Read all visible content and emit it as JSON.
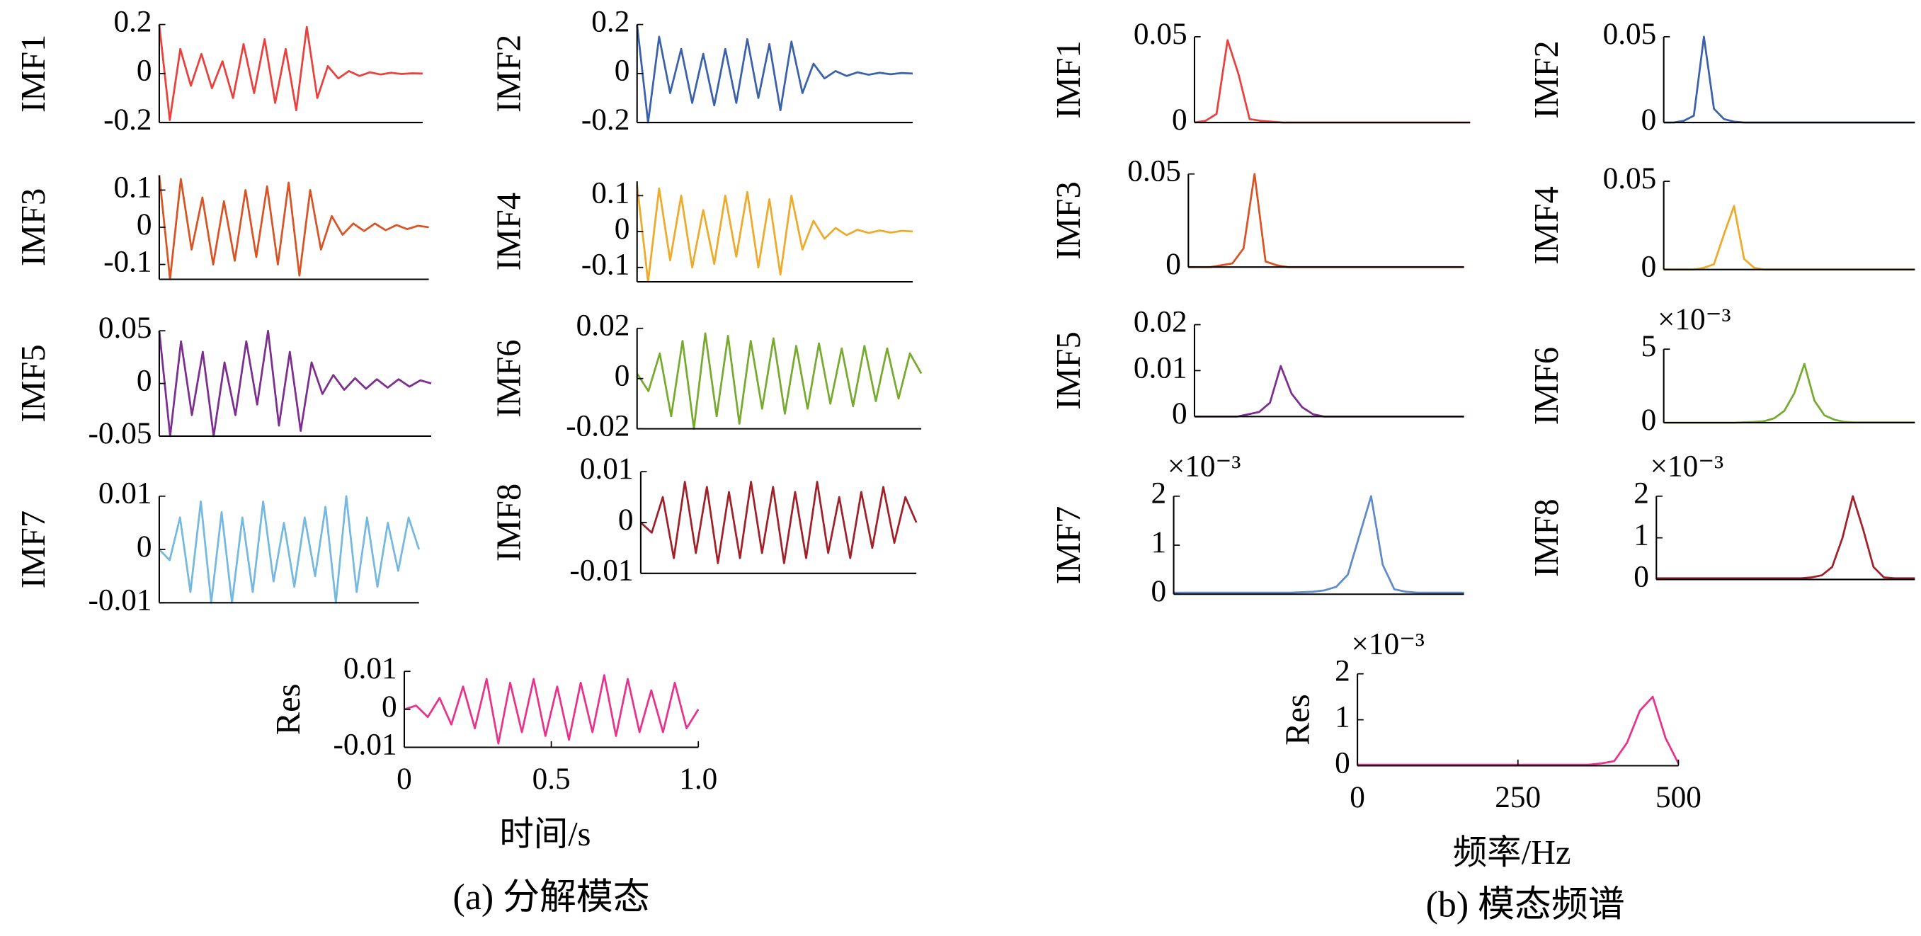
{
  "captions": [
    "(a) 分解模态",
    "(b) 模态频谱"
  ],
  "chart_data": [
    {
      "type": "line",
      "ylabel": "IMF1",
      "color": "#e8413e",
      "xlim": [
        0,
        1
      ],
      "ylim": [
        -0.2,
        0.2
      ],
      "yticks": [
        -0.2,
        0,
        0.2
      ],
      "x": [
        0,
        0.04,
        0.08,
        0.12,
        0.16,
        0.2,
        0.24,
        0.28,
        0.32,
        0.36,
        0.4,
        0.44,
        0.48,
        0.52,
        0.56,
        0.6,
        0.64,
        0.68,
        0.72,
        0.76,
        0.8,
        0.84,
        0.88,
        0.92,
        0.96,
        1
      ],
      "values": [
        0.2,
        -0.19,
        0.1,
        -0.05,
        0.08,
        -0.06,
        0.05,
        -0.1,
        0.12,
        -0.08,
        0.14,
        -0.12,
        0.1,
        -0.15,
        0.19,
        -0.1,
        0.03,
        -0.02,
        0.01,
        -0.01,
        0.005,
        -0.004,
        0.003,
        -0.002,
        0.001,
        0
      ]
    },
    {
      "type": "line",
      "ylabel": "IMF2",
      "color": "#3b62a8",
      "xlim": [
        0,
        1
      ],
      "ylim": [
        -0.2,
        0.2
      ],
      "yticks": [
        -0.2,
        0,
        0.2
      ],
      "x": [
        0,
        0.04,
        0.08,
        0.12,
        0.16,
        0.2,
        0.24,
        0.28,
        0.32,
        0.36,
        0.4,
        0.44,
        0.48,
        0.52,
        0.56,
        0.6,
        0.64,
        0.68,
        0.72,
        0.76,
        0.8,
        0.84,
        0.88,
        0.92,
        0.96,
        1
      ],
      "values": [
        0.2,
        -0.2,
        0.15,
        -0.08,
        0.1,
        -0.12,
        0.08,
        -0.13,
        0.1,
        -0.12,
        0.14,
        -0.1,
        0.12,
        -0.15,
        0.13,
        -0.08,
        0.04,
        -0.02,
        0.01,
        -0.01,
        0.005,
        -0.005,
        0.003,
        -0.003,
        0.002,
        0
      ]
    },
    {
      "type": "line",
      "ylabel": "IMF3",
      "color": "#d95425",
      "xlim": [
        0,
        1
      ],
      "ylim": [
        -0.14,
        0.14
      ],
      "yticks": [
        -0.1,
        0,
        0.1
      ],
      "x": [
        0,
        0.04,
        0.08,
        0.12,
        0.16,
        0.2,
        0.24,
        0.28,
        0.32,
        0.36,
        0.4,
        0.44,
        0.48,
        0.52,
        0.56,
        0.6,
        0.64,
        0.68,
        0.72,
        0.76,
        0.8,
        0.84,
        0.88,
        0.92,
        0.96,
        1
      ],
      "values": [
        0.14,
        -0.14,
        0.13,
        -0.06,
        0.08,
        -0.1,
        0.07,
        -0.09,
        0.1,
        -0.08,
        0.11,
        -0.1,
        0.12,
        -0.13,
        0.1,
        -0.06,
        0.03,
        -0.02,
        0.01,
        -0.01,
        0.01,
        -0.008,
        0.006,
        -0.005,
        0.004,
        0
      ]
    },
    {
      "type": "line",
      "ylabel": "IMF4",
      "color": "#eeaa2a",
      "xlim": [
        0,
        1
      ],
      "ylim": [
        -0.14,
        0.14
      ],
      "yticks": [
        -0.1,
        0,
        0.1
      ],
      "x": [
        0,
        0.04,
        0.08,
        0.12,
        0.16,
        0.2,
        0.24,
        0.28,
        0.32,
        0.36,
        0.4,
        0.44,
        0.48,
        0.52,
        0.56,
        0.6,
        0.64,
        0.68,
        0.72,
        0.76,
        0.8,
        0.84,
        0.88,
        0.92,
        0.96,
        1
      ],
      "values": [
        0.13,
        -0.14,
        0.12,
        -0.08,
        0.1,
        -0.1,
        0.06,
        -0.09,
        0.1,
        -0.07,
        0.11,
        -0.1,
        0.09,
        -0.12,
        0.1,
        -0.05,
        0.03,
        -0.02,
        0.01,
        -0.01,
        0.005,
        -0.004,
        0.003,
        -0.003,
        0.002,
        0
      ]
    },
    {
      "type": "line",
      "ylabel": "IMF5",
      "color": "#7c2f8e",
      "xlim": [
        0,
        1
      ],
      "ylim": [
        -0.05,
        0.05
      ],
      "yticks": [
        -0.05,
        0,
        0.05
      ],
      "x": [
        0,
        0.04,
        0.08,
        0.12,
        0.16,
        0.2,
        0.24,
        0.28,
        0.32,
        0.36,
        0.4,
        0.44,
        0.48,
        0.52,
        0.56,
        0.6,
        0.64,
        0.68,
        0.72,
        0.76,
        0.8,
        0.84,
        0.88,
        0.92,
        0.96,
        1
      ],
      "values": [
        0.05,
        -0.05,
        0.04,
        -0.03,
        0.03,
        -0.05,
        0.02,
        -0.03,
        0.04,
        -0.02,
        0.05,
        -0.04,
        0.03,
        -0.045,
        0.02,
        -0.01,
        0.008,
        -0.006,
        0.005,
        -0.005,
        0.004,
        -0.004,
        0.004,
        -0.003,
        0.003,
        0
      ]
    },
    {
      "type": "line",
      "ylabel": "IMF6",
      "color": "#77ab30",
      "xlim": [
        0,
        1
      ],
      "ylim": [
        -0.02,
        0.02
      ],
      "yticks": [
        -0.02,
        0,
        0.02
      ],
      "x": [
        0,
        0.04,
        0.08,
        0.12,
        0.16,
        0.2,
        0.24,
        0.28,
        0.32,
        0.36,
        0.4,
        0.44,
        0.48,
        0.52,
        0.56,
        0.6,
        0.64,
        0.68,
        0.72,
        0.76,
        0.8,
        0.84,
        0.88,
        0.92,
        0.96,
        1
      ],
      "values": [
        0.002,
        -0.005,
        0.01,
        -0.015,
        0.015,
        -0.02,
        0.018,
        -0.015,
        0.017,
        -0.018,
        0.015,
        -0.012,
        0.016,
        -0.014,
        0.013,
        -0.012,
        0.014,
        -0.01,
        0.012,
        -0.011,
        0.013,
        -0.009,
        0.012,
        -0.008,
        0.01,
        0.002
      ]
    },
    {
      "type": "line",
      "ylabel": "IMF7",
      "color": "#75b9e0",
      "xlim": [
        0,
        1
      ],
      "ylim": [
        -0.01,
        0.01
      ],
      "yticks": [
        -0.01,
        0,
        0.01
      ],
      "x": [
        0,
        0.04,
        0.08,
        0.12,
        0.16,
        0.2,
        0.24,
        0.28,
        0.32,
        0.36,
        0.4,
        0.44,
        0.48,
        0.52,
        0.56,
        0.6,
        0.64,
        0.68,
        0.72,
        0.76,
        0.8,
        0.84,
        0.88,
        0.92,
        0.96,
        1
      ],
      "values": [
        0,
        -0.002,
        0.006,
        -0.008,
        0.009,
        -0.01,
        0.007,
        -0.01,
        0.006,
        -0.008,
        0.009,
        -0.006,
        0.005,
        -0.007,
        0.006,
        -0.005,
        0.008,
        -0.01,
        0.01,
        -0.008,
        0.006,
        -0.007,
        0.005,
        -0.004,
        0.006,
        0
      ]
    },
    {
      "type": "line",
      "ylabel": "IMF8",
      "color": "#a0212a",
      "xlim": [
        0,
        1
      ],
      "ylim": [
        -0.01,
        0.01
      ],
      "yticks": [
        -0.01,
        0,
        0.01
      ],
      "x": [
        0,
        0.04,
        0.08,
        0.12,
        0.16,
        0.2,
        0.24,
        0.28,
        0.32,
        0.36,
        0.4,
        0.44,
        0.48,
        0.52,
        0.56,
        0.6,
        0.64,
        0.68,
        0.72,
        0.76,
        0.8,
        0.84,
        0.88,
        0.92,
        0.96,
        1
      ],
      "values": [
        0,
        -0.002,
        0.005,
        -0.007,
        0.008,
        -0.006,
        0.007,
        -0.008,
        0.006,
        -0.007,
        0.008,
        -0.006,
        0.007,
        -0.008,
        0.006,
        -0.007,
        0.008,
        -0.006,
        0.005,
        -0.007,
        0.006,
        -0.005,
        0.007,
        -0.004,
        0.005,
        0
      ]
    },
    {
      "type": "line",
      "ylabel": "Res",
      "xlabel": "时间/s",
      "color": "#e8338c",
      "xlim": [
        0,
        1
      ],
      "ylim": [
        -0.01,
        0.01
      ],
      "yticks": [
        -0.01,
        0,
        0.01
      ],
      "xticks": [
        0,
        0.5,
        {
          "value": 1,
          "label": "1.0"
        }
      ],
      "x": [
        0,
        0.04,
        0.08,
        0.12,
        0.16,
        0.2,
        0.24,
        0.28,
        0.32,
        0.36,
        0.4,
        0.44,
        0.48,
        0.52,
        0.56,
        0.6,
        0.64,
        0.68,
        0.72,
        0.76,
        0.8,
        0.84,
        0.88,
        0.92,
        0.96,
        1
      ],
      "values": [
        0,
        0.001,
        -0.002,
        0.003,
        -0.004,
        0.006,
        -0.005,
        0.008,
        -0.009,
        0.007,
        -0.006,
        0.008,
        -0.007,
        0.006,
        -0.008,
        0.007,
        -0.006,
        0.009,
        -0.007,
        0.008,
        -0.006,
        0.005,
        -0.006,
        0.007,
        -0.005,
        0
      ]
    },
    {
      "type": "line",
      "ylabel": "IMF1",
      "color": "#e8413e",
      "xlim": [
        0,
        500
      ],
      "ylim": [
        0,
        0.05
      ],
      "yticks": [
        0,
        0.05
      ],
      "x": [
        0,
        20,
        40,
        60,
        80,
        100,
        120,
        140,
        160,
        180,
        200,
        220,
        240,
        260,
        280,
        300,
        320,
        340,
        360,
        380,
        400,
        420,
        440,
        460,
        480,
        500
      ],
      "values": [
        0,
        0.001,
        0.005,
        0.048,
        0.028,
        0.002,
        0.001,
        0.0005,
        0,
        0,
        0,
        0,
        0,
        0,
        0,
        0,
        0,
        0,
        0,
        0,
        0,
        0,
        0,
        0,
        0,
        0
      ]
    },
    {
      "type": "line",
      "ylabel": "IMF2",
      "color": "#3b62a8",
      "xlim": [
        0,
        500
      ],
      "ylim": [
        0,
        0.05
      ],
      "yticks": [
        0,
        0.05
      ],
      "x": [
        0,
        20,
        40,
        60,
        80,
        100,
        120,
        140,
        160,
        180,
        200,
        220,
        240,
        260,
        280,
        300,
        320,
        340,
        360,
        380,
        400,
        420,
        440,
        460,
        480,
        500
      ],
      "values": [
        0,
        0,
        0.001,
        0.004,
        0.05,
        0.008,
        0.002,
        0.0005,
        0,
        0,
        0,
        0,
        0,
        0,
        0,
        0,
        0,
        0,
        0,
        0,
        0,
        0,
        0,
        0,
        0,
        0
      ]
    },
    {
      "type": "line",
      "ylabel": "IMF3",
      "color": "#d95425",
      "xlim": [
        0,
        500
      ],
      "ylim": [
        0,
        0.05
      ],
      "yticks": [
        0,
        0.05
      ],
      "x": [
        0,
        20,
        40,
        60,
        80,
        100,
        120,
        140,
        160,
        180,
        200,
        220,
        240,
        260,
        280,
        300,
        320,
        340,
        360,
        380,
        400,
        420,
        440,
        460,
        480,
        500
      ],
      "values": [
        0,
        0,
        0,
        0.001,
        0.002,
        0.01,
        0.05,
        0.003,
        0.001,
        0,
        0,
        0,
        0,
        0,
        0,
        0,
        0,
        0,
        0,
        0,
        0,
        0,
        0,
        0,
        0,
        0
      ]
    },
    {
      "type": "line",
      "ylabel": "IMF4",
      "color": "#eeaa2a",
      "xlim": [
        0,
        500
      ],
      "ylim": [
        0,
        0.05
      ],
      "yticks": [
        0,
        0.05
      ],
      "x": [
        0,
        20,
        40,
        60,
        80,
        100,
        120,
        140,
        160,
        180,
        200,
        220,
        240,
        260,
        280,
        300,
        320,
        340,
        360,
        380,
        400,
        420,
        440,
        460,
        480,
        500
      ],
      "values": [
        0,
        0,
        0,
        0,
        0.001,
        0.003,
        0.02,
        0.036,
        0.006,
        0.001,
        0,
        0,
        0,
        0,
        0,
        0,
        0,
        0,
        0,
        0,
        0,
        0,
        0,
        0,
        0,
        0
      ]
    },
    {
      "type": "line",
      "ylabel": "IMF5",
      "color": "#7c2f8e",
      "xlim": [
        0,
        500
      ],
      "ylim": [
        0,
        0.02
      ],
      "yticks": [
        0,
        0.01,
        0.02
      ],
      "x": [
        0,
        20,
        40,
        60,
        80,
        100,
        120,
        140,
        160,
        180,
        200,
        220,
        240,
        260,
        280,
        300,
        320,
        340,
        360,
        380,
        400,
        420,
        440,
        460,
        480,
        500
      ],
      "values": [
        0,
        0,
        0,
        0,
        0,
        0.0005,
        0.001,
        0.003,
        0.011,
        0.005,
        0.002,
        0.0005,
        0,
        0,
        0,
        0,
        0,
        0,
        0,
        0,
        0,
        0,
        0,
        0,
        0,
        0
      ]
    },
    {
      "type": "line",
      "ylabel": "IMF6",
      "multiplier": "×10⁻³",
      "color": "#77ab30",
      "xlim": [
        0,
        500
      ],
      "ylim": [
        0,
        5
      ],
      "yticks": [
        0,
        5
      ],
      "x": [
        0,
        20,
        40,
        60,
        80,
        100,
        120,
        140,
        160,
        180,
        200,
        220,
        240,
        260,
        280,
        300,
        320,
        340,
        360,
        380,
        400,
        420,
        440,
        460,
        480,
        500
      ],
      "values": [
        0,
        0,
        0,
        0,
        0,
        0,
        0,
        0,
        0.02,
        0.05,
        0.1,
        0.3,
        0.8,
        2,
        4,
        1.5,
        0.5,
        0.2,
        0.05,
        0.02,
        0.02,
        0.02,
        0.02,
        0.02,
        0.02,
        0.02
      ]
    },
    {
      "type": "line",
      "ylabel": "IMF7",
      "multiplier": "×10⁻³",
      "color": "#5f8bc8",
      "xlim": [
        0,
        500
      ],
      "ylim": [
        0,
        2
      ],
      "yticks": [
        0,
        1,
        2
      ],
      "x": [
        0,
        20,
        40,
        60,
        80,
        100,
        120,
        140,
        160,
        180,
        200,
        220,
        240,
        260,
        280,
        300,
        320,
        340,
        360,
        380,
        400,
        420,
        440,
        460,
        480,
        500
      ],
      "values": [
        0.03,
        0.03,
        0.03,
        0.03,
        0.03,
        0.03,
        0.03,
        0.03,
        0.03,
        0.03,
        0.03,
        0.04,
        0.05,
        0.08,
        0.15,
        0.4,
        1.2,
        2,
        0.6,
        0.1,
        0.05,
        0.03,
        0.03,
        0.03,
        0.03,
        0.03
      ]
    },
    {
      "type": "line",
      "ylabel": "IMF8",
      "multiplier": "×10⁻³",
      "color": "#a0212a",
      "xlim": [
        0,
        500
      ],
      "ylim": [
        0,
        2
      ],
      "yticks": [
        0,
        1,
        2
      ],
      "x": [
        0,
        20,
        40,
        60,
        80,
        100,
        120,
        140,
        160,
        180,
        200,
        220,
        240,
        260,
        280,
        300,
        320,
        340,
        360,
        380,
        400,
        420,
        440,
        460,
        480,
        500
      ],
      "values": [
        0.03,
        0.03,
        0.03,
        0.03,
        0.03,
        0.03,
        0.03,
        0.03,
        0.03,
        0.03,
        0.03,
        0.03,
        0.03,
        0.03,
        0.03,
        0.05,
        0.1,
        0.3,
        1,
        2,
        1.2,
        0.3,
        0.05,
        0.03,
        0.03,
        0.03
      ]
    },
    {
      "type": "line",
      "ylabel": "Res",
      "xlabel": "频率/Hz",
      "multiplier": "×10⁻³",
      "color": "#e8338c",
      "xlim": [
        0,
        500
      ],
      "ylim": [
        0,
        2
      ],
      "yticks": [
        0,
        1,
        2
      ],
      "xticks": [
        0,
        250,
        500
      ],
      "x": [
        0,
        20,
        40,
        60,
        80,
        100,
        120,
        140,
        160,
        180,
        200,
        220,
        240,
        260,
        280,
        300,
        320,
        340,
        360,
        380,
        400,
        420,
        440,
        460,
        480,
        500
      ],
      "values": [
        0.02,
        0.02,
        0.02,
        0.02,
        0.02,
        0.02,
        0.02,
        0.02,
        0.02,
        0.02,
        0.02,
        0.02,
        0.02,
        0.02,
        0.02,
        0.02,
        0.02,
        0.02,
        0.02,
        0.05,
        0.1,
        0.5,
        1.2,
        1.5,
        0.6,
        0.05
      ]
    }
  ]
}
